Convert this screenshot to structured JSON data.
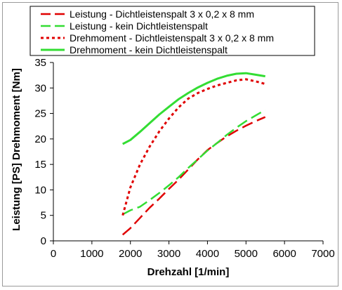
{
  "chart_data": {
    "type": "line",
    "title": "",
    "xlabel": "Drehzahl [1/min]",
    "ylabel": "Leistung [PS] Drehmoment [Nm]",
    "xlim": [
      0,
      7000
    ],
    "ylim": [
      0,
      35
    ],
    "x_ticks": [
      0,
      1000,
      2000,
      3000,
      4000,
      5000,
      6000,
      7000
    ],
    "y_ticks": [
      0,
      5,
      10,
      15,
      20,
      25,
      30,
      35
    ],
    "grid": false,
    "legend_position": "top",
    "series": [
      {
        "name": "Leistung - Dichtleistenspalt 3 x 0,2 x 8 mm",
        "color": "#e00000",
        "dash": "long-dash",
        "x": [
          1800,
          2000,
          2250,
          2500,
          2750,
          3000,
          3250,
          3500,
          3750,
          4000,
          4250,
          4500,
          4750,
          5000,
          5250,
          5500
        ],
        "y": [
          1.2,
          2.5,
          4.5,
          6.5,
          8.3,
          10.2,
          12.0,
          14.0,
          16.0,
          17.8,
          19.2,
          20.5,
          21.6,
          22.6,
          23.5,
          24.3
        ]
      },
      {
        "name": "Leistung - kein Dichtleistenspalt",
        "color": "#33dd33",
        "dash": "long-dash",
        "x": [
          1800,
          2000,
          2250,
          2500,
          2750,
          3000,
          3250,
          3500,
          3750,
          4000,
          4250,
          4500,
          4750,
          5000,
          5250,
          5500
        ],
        "y": [
          5.2,
          6.0,
          6.7,
          8.0,
          9.4,
          10.9,
          12.5,
          14.3,
          16.0,
          17.7,
          19.2,
          20.8,
          22.2,
          23.5,
          24.6,
          25.7
        ]
      },
      {
        "name": "Drehmoment - Dichtleistenspalt 3 x 0,2 x 8 mm",
        "color": "#e00000",
        "dash": "dotted",
        "x": [
          1800,
          2000,
          2250,
          2500,
          2750,
          3000,
          3250,
          3500,
          3750,
          4000,
          4250,
          4500,
          4750,
          5000,
          5250,
          5500
        ],
        "y": [
          5.0,
          10.5,
          15.0,
          18.5,
          21.5,
          24.0,
          26.2,
          27.9,
          29.0,
          29.8,
          30.5,
          31.0,
          31.5,
          31.7,
          31.3,
          30.8
        ]
      },
      {
        "name": "Drehmoment - kein Dichtleistenspalt",
        "color": "#33dd33",
        "dash": "solid",
        "x": [
          1800,
          2000,
          2250,
          2500,
          2750,
          3000,
          3250,
          3500,
          3750,
          4000,
          4250,
          4500,
          4750,
          5000,
          5250,
          5500
        ],
        "y": [
          19.0,
          19.8,
          21.4,
          23.1,
          24.8,
          26.3,
          27.8,
          29.0,
          30.1,
          31.0,
          31.8,
          32.4,
          32.8,
          32.9,
          32.6,
          32.3
        ]
      }
    ]
  }
}
